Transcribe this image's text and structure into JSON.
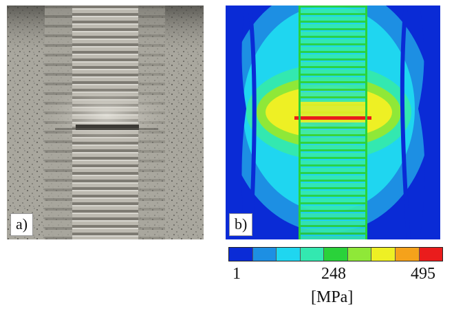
{
  "panel_a": {
    "label": "a)"
  },
  "panel_b": {
    "label": "b)"
  },
  "colorbar": {
    "min_label": "1",
    "mid_label": "248",
    "max_label": "495",
    "unit": "[MPa]",
    "colors": [
      "#0a2bd6",
      "#1d8fe3",
      "#1fd6f0",
      "#33e8b0",
      "#2ad23a",
      "#8fe838",
      "#eef024",
      "#f5a21b",
      "#ea1c1c"
    ]
  }
}
